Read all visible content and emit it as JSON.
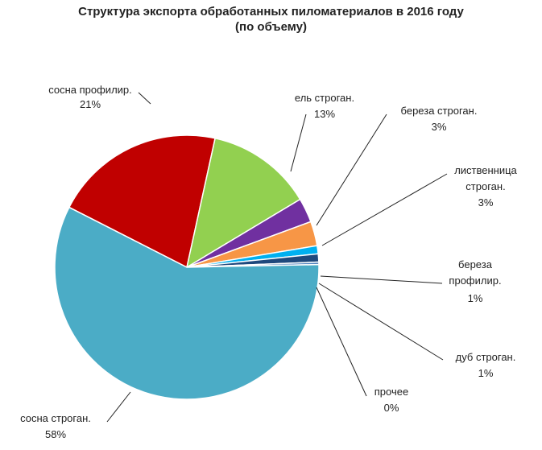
{
  "chart_data": {
    "type": "pie",
    "title": "Структура экспорта обработанных пиломатериалов в 2016 году",
    "subtitle": "(по объему)",
    "slices": [
      {
        "name": "сосна профилир.",
        "value_label": "21%",
        "value": 21,
        "color": "#c00000"
      },
      {
        "name": "ель строган.",
        "value_label": "13%",
        "value": 13,
        "color": "#92d050"
      },
      {
        "name": "береза строган.",
        "value_label": "3%",
        "value": 3,
        "color": "#7030a0"
      },
      {
        "name": "лиственница строган.",
        "value_label": "3%",
        "value": 3,
        "color": "#f79646"
      },
      {
        "name": "береза профилир.",
        "value_label": "1%",
        "value": 1,
        "color": "#00b0f0"
      },
      {
        "name": "дуб строган.",
        "value_label": "1%",
        "value": 1,
        "color": "#1f497d"
      },
      {
        "name": "прочее",
        "value_label": "0%",
        "value": 0.3,
        "color": "#4f81bd"
      },
      {
        "name": "сосна строган.",
        "value_label": "58%",
        "value": 58,
        "color": "#4bacc6"
      }
    ]
  }
}
